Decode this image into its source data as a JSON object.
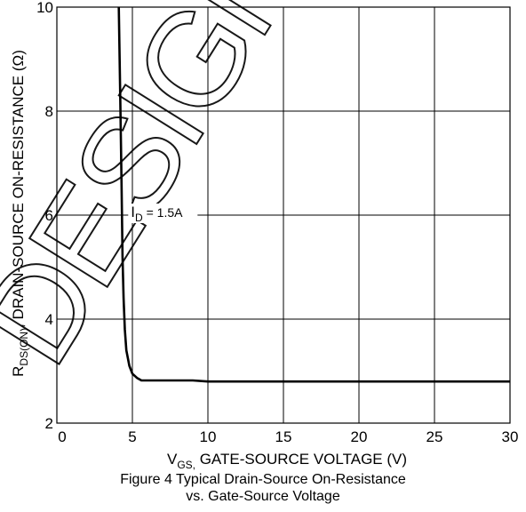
{
  "chart_data": {
    "type": "line",
    "xlabel": {
      "v": "V",
      "sub": "GS,",
      "rest": " GATE-SOURCE VOLTAGE (V)"
    },
    "ylabel": {
      "r": "R",
      "sub": "DS(ON)",
      "rest": ", DRAIN-SOURCE ON-RESISTANCE (Ω)"
    },
    "xlim": [
      0,
      30
    ],
    "ylim": [
      2,
      10
    ],
    "xticks": [
      0,
      5,
      10,
      15,
      20,
      25,
      30
    ],
    "yticks": [
      2,
      4,
      6,
      8,
      10
    ],
    "grid": true,
    "series": [
      {
        "annotation": {
          "i": "I",
          "sub": "D",
          "rest": " = 1.5A"
        },
        "x": [
          4.1,
          4.2,
          4.28,
          4.35,
          4.42,
          4.5,
          4.6,
          4.8,
          5.0,
          5.3,
          5.6,
          6,
          7,
          8,
          9,
          10,
          12,
          15,
          20,
          25,
          30
        ],
        "y": [
          10,
          8.2,
          6.6,
          5.2,
          4.4,
          3.8,
          3.4,
          3.1,
          2.95,
          2.87,
          2.82,
          2.82,
          2.82,
          2.82,
          2.82,
          2.8,
          2.8,
          2.8,
          2.8,
          2.8,
          2.8
        ]
      }
    ]
  },
  "caption": {
    "line1": "Figure 4 Typical Drain-Source On-Resistance",
    "line2": "vs. Gate-Source Voltage"
  },
  "watermark": "DESIGN"
}
